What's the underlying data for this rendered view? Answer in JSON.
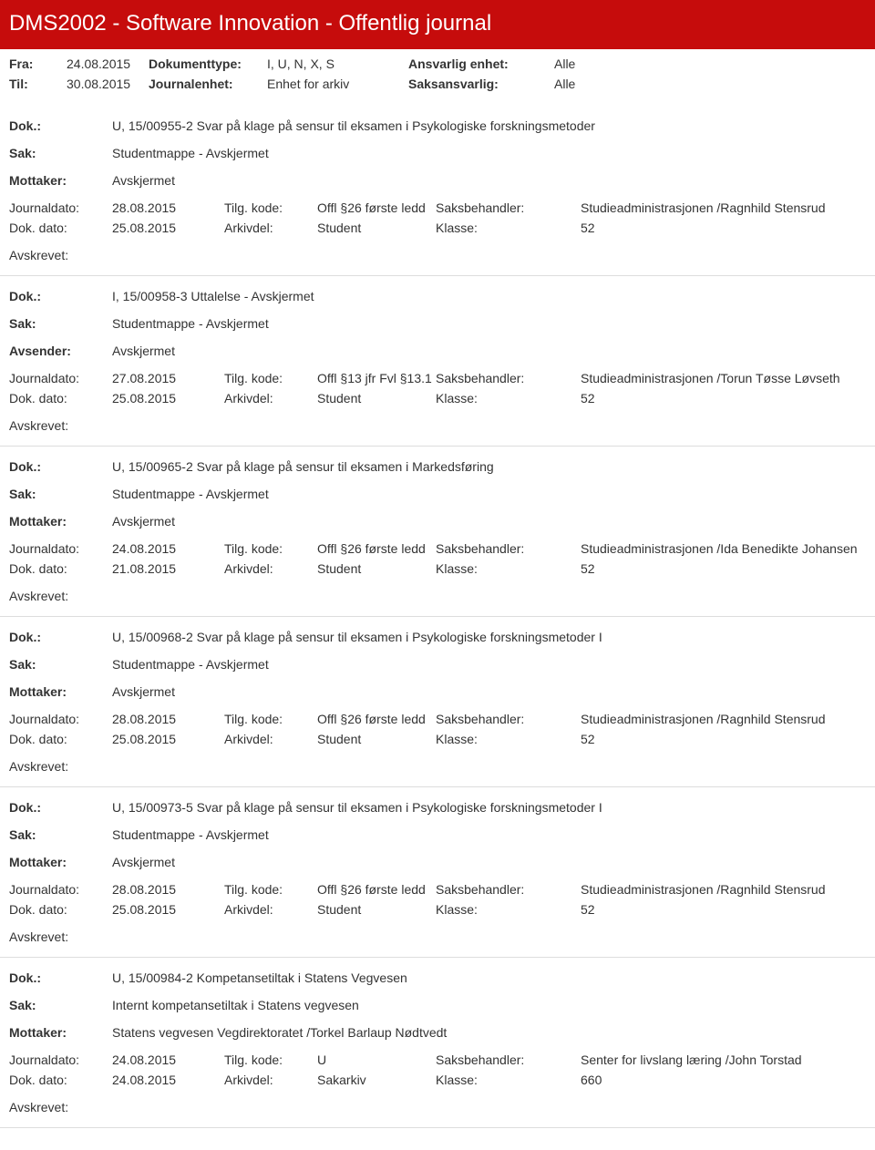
{
  "header": {
    "title": "DMS2002 - Software Innovation - Offentlig journal"
  },
  "meta": {
    "fra_label": "Fra:",
    "fra": "24.08.2015",
    "til_label": "Til:",
    "til": "30.08.2015",
    "doktype_label": "Dokumenttype:",
    "doktype": "I, U, N, X, S",
    "journalenhet_label": "Journalenhet:",
    "journalenhet": "Enhet for arkiv",
    "ansvarlig_label": "Ansvarlig enhet:",
    "ansvarlig": "Alle",
    "saksansvarlig_label": "Saksansvarlig:",
    "saksansvarlig": "Alle"
  },
  "labels": {
    "dok": "Dok.:",
    "sak": "Sak:",
    "mottaker": "Mottaker:",
    "avsender": "Avsender:",
    "journaldato": "Journaldato:",
    "dokdato": "Dok. dato:",
    "tilgkode": "Tilg. kode:",
    "arkivdel": "Arkivdel:",
    "saksbehandler": "Saksbehandler:",
    "klasse": "Klasse:",
    "avskrevet": "Avskrevet:"
  },
  "entries": [
    {
      "dok": "U, 15/00955-2 Svar på klage på sensur til eksamen i Psykologiske forskningsmetoder",
      "sak": "Studentmappe - Avskjermet",
      "party_label": "Mottaker:",
      "party": "Avskjermet",
      "journaldato": "28.08.2015",
      "tilgkode": "Offl §26 første ledd",
      "saksbehandler": "Studieadministrasjonen /Ragnhild Stensrud",
      "dokdato": "25.08.2015",
      "arkivdel": "Student",
      "klasse": "52"
    },
    {
      "dok": "I, 15/00958-3 Uttalelse - Avskjermet",
      "sak": "Studentmappe - Avskjermet",
      "party_label": "Avsender:",
      "party": "Avskjermet",
      "journaldato": "27.08.2015",
      "tilgkode": "Offl §13 jfr Fvl §13.1",
      "saksbehandler": "Studieadministrasjonen /Torun Tøsse Løvseth",
      "dokdato": "25.08.2015",
      "arkivdel": "Student",
      "klasse": "52"
    },
    {
      "dok": "U, 15/00965-2 Svar på klage på sensur til eksamen i Markedsføring",
      "sak": "Studentmappe - Avskjermet",
      "party_label": "Mottaker:",
      "party": "Avskjermet",
      "journaldato": "24.08.2015",
      "tilgkode": "Offl §26 første ledd",
      "saksbehandler": "Studieadministrasjonen /Ida Benedikte Johansen",
      "dokdato": "21.08.2015",
      "arkivdel": "Student",
      "klasse": "52"
    },
    {
      "dok": "U, 15/00968-2 Svar på klage på sensur til eksamen i Psykologiske forskningsmetoder I",
      "sak": "Studentmappe - Avskjermet",
      "party_label": "Mottaker:",
      "party": "Avskjermet",
      "journaldato": "28.08.2015",
      "tilgkode": "Offl §26 første ledd",
      "saksbehandler": "Studieadministrasjonen /Ragnhild Stensrud",
      "dokdato": "25.08.2015",
      "arkivdel": "Student",
      "klasse": "52"
    },
    {
      "dok": "U, 15/00973-5 Svar på klage på sensur til eksamen i Psykologiske forskningsmetoder I",
      "sak": "Studentmappe - Avskjermet",
      "party_label": "Mottaker:",
      "party": "Avskjermet",
      "journaldato": "28.08.2015",
      "tilgkode": "Offl §26 første ledd",
      "saksbehandler": "Studieadministrasjonen /Ragnhild Stensrud",
      "dokdato": "25.08.2015",
      "arkivdel": "Student",
      "klasse": "52"
    },
    {
      "dok": "U, 15/00984-2 Kompetansetiltak i Statens Vegvesen",
      "sak": "Internt kompetansetiltak i Statens vegvesen",
      "party_label": "Mottaker:",
      "party": "Statens vegvesen Vegdirektoratet /Torkel Barlaup Nødtvedt",
      "journaldato": "24.08.2015",
      "tilgkode": "U",
      "saksbehandler": "Senter for livslang læring /John Torstad",
      "dokdato": "24.08.2015",
      "arkivdel": "Sakarkiv",
      "klasse": "660"
    }
  ]
}
